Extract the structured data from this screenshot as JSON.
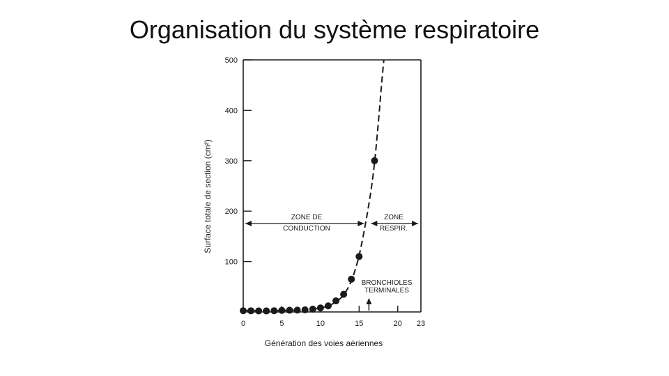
{
  "slide": {
    "title": "Organisation du système respiratoire"
  },
  "chart_data": {
    "type": "scatter",
    "title": "",
    "xlabel": "Génération des voies aériennes",
    "ylabel": "Surface totale de section (cm²)",
    "xlim": [
      0,
      23
    ],
    "ylim": [
      0,
      500
    ],
    "x_ticks": [
      0,
      5,
      10,
      15,
      20,
      23
    ],
    "y_ticks": [
      100,
      200,
      300,
      400,
      500
    ],
    "x": [
      0,
      1,
      2,
      3,
      4,
      5,
      6,
      7,
      8,
      9,
      10,
      11,
      12,
      13,
      14,
      15,
      17
    ],
    "series": [
      {
        "values": [
          2.5,
          2.3,
          2.1,
          2.0,
          2.5,
          3.1,
          3.4,
          3.6,
          4.2,
          5.5,
          8,
          12,
          22,
          35,
          65,
          110,
          300
        ]
      }
    ],
    "trend_line": {
      "style": "dashed",
      "x": [
        0,
        4,
        8,
        9,
        10,
        11,
        12,
        13,
        14,
        15,
        16,
        16.8,
        17.4,
        17.9,
        18.2
      ],
      "values": [
        2.5,
        2.5,
        4.2,
        5.5,
        8,
        12,
        20,
        34,
        62,
        112,
        190,
        270,
        360,
        450,
        500
      ]
    },
    "zones": [
      {
        "label_line1": "ZONE DE",
        "label_line2": "CONDUCTION",
        "x_start": 0,
        "x_end": 16
      },
      {
        "label_line1": "ZONE",
        "label_line2": "RESPIR.",
        "x_start": 16,
        "x_end": 23
      }
    ],
    "annotation": {
      "label_line1": "BRONCHIOLES",
      "label_line2": "TERMINALES",
      "x": 16
    }
  }
}
